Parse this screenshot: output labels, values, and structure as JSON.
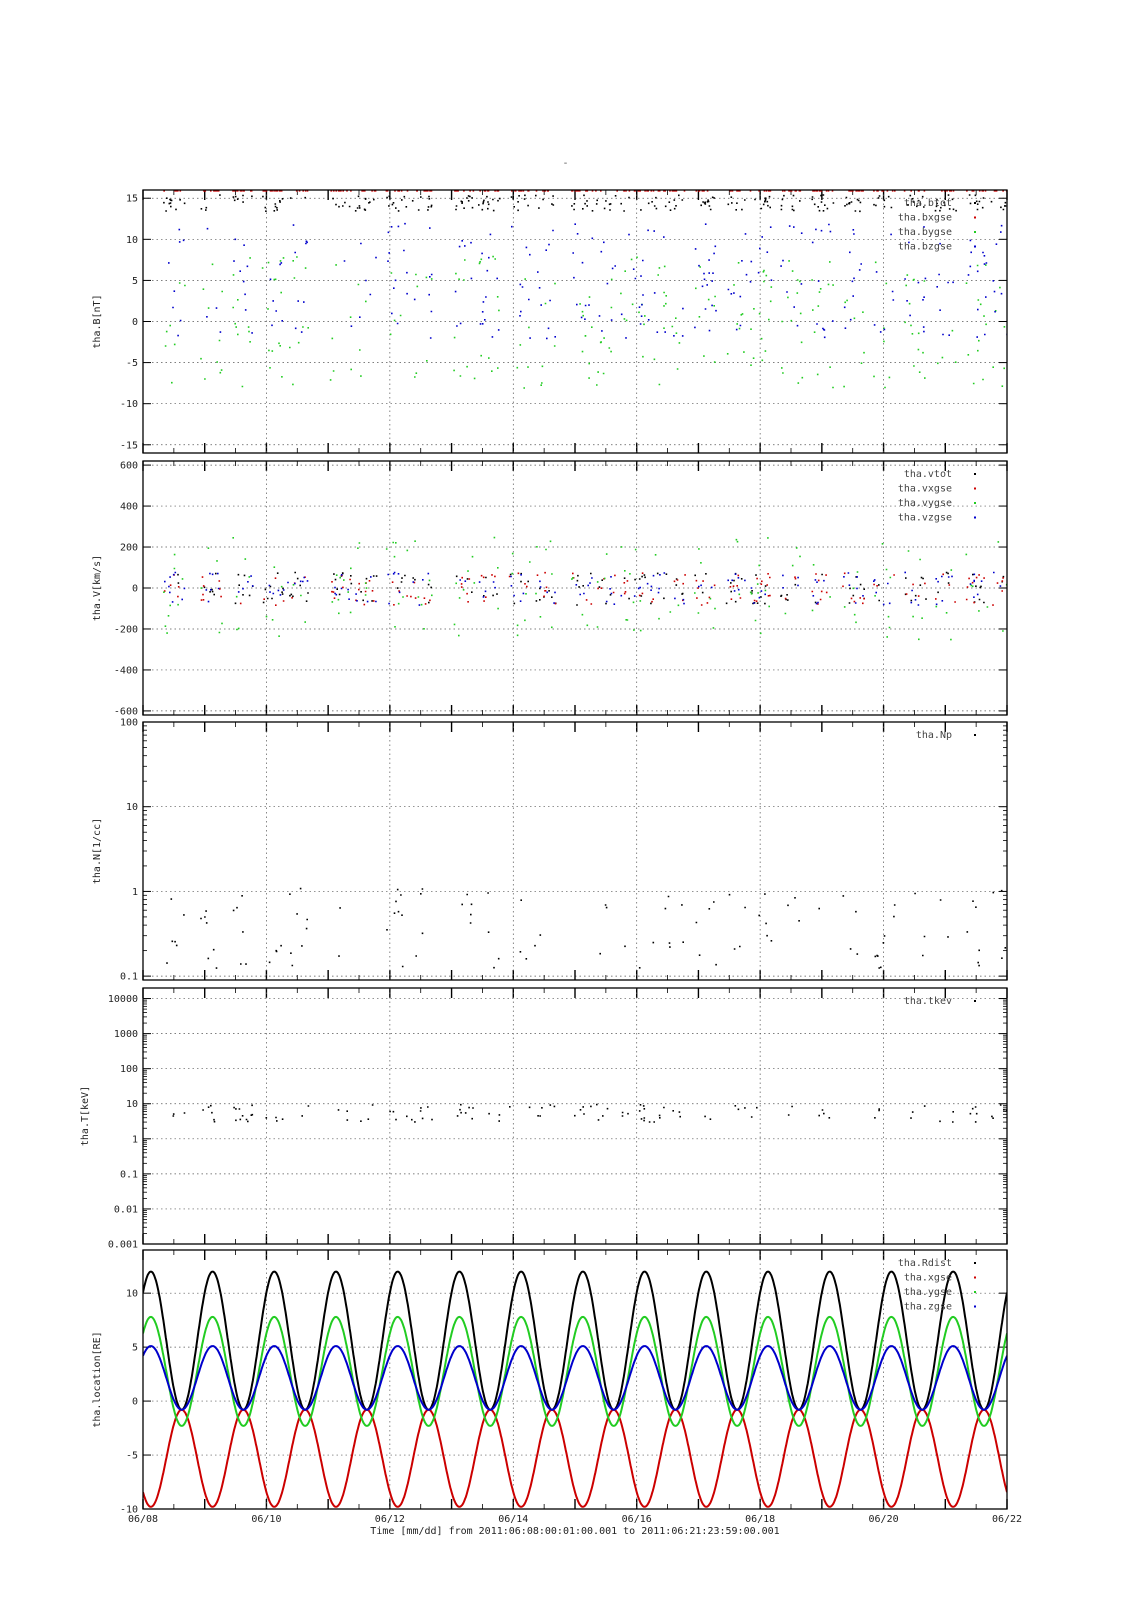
{
  "page": {
    "title": "-"
  },
  "time_axis": {
    "unit": "days since 2011-06-08 (tick labels only)",
    "tick_labels": [
      "06/08",
      "06/10",
      "06/12",
      "06/14",
      "06/16",
      "06/18",
      "06/20",
      "06/22"
    ],
    "range": [
      0,
      14
    ],
    "xlabel": "Time [mm/dd]  from 2011:06:08:00:01:00.001  to  2011:06:21:23:59:00.001"
  },
  "chart_data": [
    {
      "type": "scatter",
      "ylabel": "tha.B[nT]",
      "ylim": [
        -16,
        16
      ],
      "yscale": "linear",
      "yticks": [
        -15,
        -10,
        -5,
        0,
        5,
        10,
        15
      ],
      "ytick_labels": [
        "-15",
        "-10",
        "-5",
        "0",
        "5",
        "10",
        "15"
      ],
      "grid": true,
      "legend_position": "top-right",
      "series": [
        {
          "name": "tha.btot",
          "color": "#000000"
        },
        {
          "name": "tha.bxgse",
          "color": "#cc0000"
        },
        {
          "name": "tha.bygse",
          "color": "#22cc22"
        },
        {
          "name": "tha.bzgse",
          "color": "#0000cc"
        }
      ]
    },
    {
      "type": "scatter",
      "ylabel": "tha.V[km/s]",
      "ylim": [
        -620,
        620
      ],
      "yscale": "linear",
      "yticks": [
        -600,
        -400,
        -200,
        0,
        200,
        400,
        600
      ],
      "ytick_labels": [
        "-600",
        "-400",
        "-200",
        "0",
        "200",
        "400",
        "600"
      ],
      "grid": true,
      "legend_position": "top-right",
      "series": [
        {
          "name": "tha.vtot",
          "color": "#000000"
        },
        {
          "name": "tha.vxgse",
          "color": "#cc0000"
        },
        {
          "name": "tha.vygse",
          "color": "#22cc22"
        },
        {
          "name": "tha.vzgse",
          "color": "#0000cc"
        }
      ]
    },
    {
      "type": "scatter",
      "ylabel": "tha.N[1/cc]",
      "ylim": [
        0.09,
        100
      ],
      "yscale": "log",
      "yticks": [
        0.1,
        1,
        10,
        100
      ],
      "ytick_labels": [
        "0.1",
        "1",
        "10",
        "100"
      ],
      "grid": true,
      "legend_position": "top-right",
      "series": [
        {
          "name": "tha.Np",
          "color": "#000000"
        }
      ]
    },
    {
      "type": "scatter",
      "ylabel": "tha.T[keV]",
      "ylim": [
        0.001,
        20000
      ],
      "yscale": "log",
      "yticks": [
        0.001,
        0.01,
        0.1,
        1,
        10,
        100,
        1000,
        10000
      ],
      "ytick_labels": [
        "0.001",
        "0.01",
        "0.1",
        "1",
        "10",
        "100",
        "1000",
        "10000"
      ],
      "grid": true,
      "legend_position": "top-right",
      "series": [
        {
          "name": "tha.tkev",
          "color": "#000000"
        }
      ]
    },
    {
      "type": "line",
      "ylabel": "tha.location[RE]",
      "ylim": [
        -10,
        14
      ],
      "yscale": "linear",
      "yticks": [
        -10,
        -5,
        0,
        5,
        10
      ],
      "ytick_labels": [
        "-10",
        "-5",
        "0",
        "5",
        "10"
      ],
      "grid": true,
      "legend_position": "top-right",
      "orbit_period_days": 1.0,
      "series": [
        {
          "name": "tha.Rdist",
          "color": "#000000",
          "max": 12.0,
          "min": -0.8
        },
        {
          "name": "tha.xgse",
          "color": "#cc0000",
          "max": -0.8,
          "min": -9.8
        },
        {
          "name": "tha.ygse",
          "color": "#22cc22",
          "max": 7.8,
          "min": -2.3
        },
        {
          "name": "tha.zgse",
          "color": "#0000cc",
          "max": 5.1,
          "min": -0.8
        }
      ]
    }
  ]
}
